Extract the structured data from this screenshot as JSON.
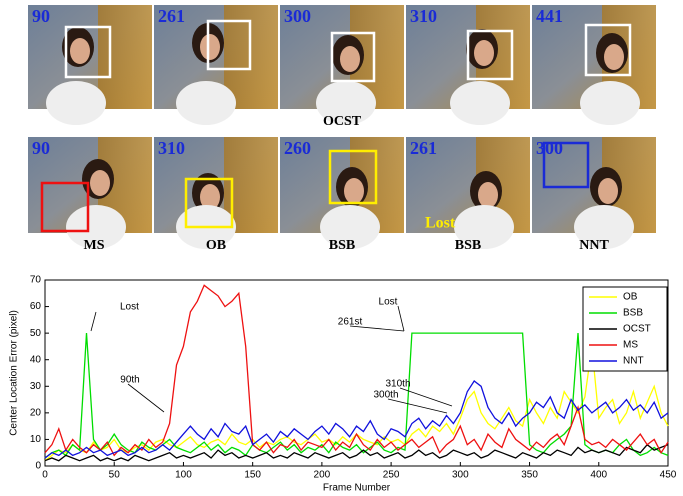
{
  "top_row": {
    "frames": [
      90,
      261,
      300,
      310,
      441
    ],
    "caption": "OCST"
  },
  "bottom_row": {
    "frames": [
      90,
      310,
      260,
      261,
      300
    ],
    "captions": [
      "MS",
      "OB",
      "BSB",
      "BSB",
      "NNT"
    ],
    "lost_label": "Lost"
  },
  "chart_data": {
    "type": "line",
    "x_label": "Frame Number",
    "y_label": "Center Location Error (pixel)",
    "xlim": [
      0,
      450
    ],
    "xticks": [
      0,
      50,
      100,
      150,
      200,
      250,
      300,
      350,
      400,
      450
    ],
    "ylim": [
      0,
      70
    ],
    "yticks": [
      0,
      10,
      20,
      30,
      40,
      50,
      60,
      70
    ],
    "legend": "upper right",
    "annotations": [
      "Lost",
      "90th",
      "Lost",
      "261st",
      "310th",
      "300th"
    ],
    "x": [
      0,
      5,
      10,
      15,
      20,
      25,
      30,
      35,
      40,
      45,
      50,
      55,
      60,
      65,
      70,
      75,
      80,
      85,
      90,
      95,
      100,
      105,
      110,
      115,
      120,
      125,
      130,
      135,
      140,
      145,
      150,
      155,
      160,
      165,
      170,
      175,
      180,
      185,
      190,
      195,
      200,
      205,
      210,
      215,
      220,
      225,
      230,
      235,
      240,
      245,
      250,
      255,
      260,
      265,
      270,
      275,
      280,
      285,
      290,
      295,
      300,
      305,
      310,
      315,
      320,
      325,
      330,
      335,
      340,
      345,
      350,
      355,
      360,
      365,
      370,
      375,
      380,
      385,
      390,
      395,
      400,
      405,
      410,
      415,
      420,
      425,
      430,
      435,
      440,
      445,
      450
    ],
    "series": [
      {
        "name": "OB",
        "color": "#ffff00",
        "values": [
          2,
          4,
          6,
          5,
          8,
          6,
          5,
          9,
          6,
          7,
          10,
          6,
          5,
          7,
          8,
          6,
          9,
          10,
          8,
          7,
          9,
          11,
          8,
          7,
          9,
          10,
          8,
          12,
          9,
          8,
          10,
          7,
          9,
          8,
          10,
          11,
          9,
          8,
          10,
          12,
          9,
          10,
          8,
          11,
          9,
          12,
          10,
          9,
          8,
          11,
          9,
          10,
          8,
          12,
          14,
          11,
          15,
          13,
          16,
          12,
          18,
          25,
          28,
          20,
          16,
          14,
          18,
          22,
          17,
          15,
          25,
          20,
          16,
          22,
          18,
          28,
          24,
          20,
          26,
          45,
          18,
          22,
          25,
          16,
          20,
          28,
          18,
          24,
          30,
          20,
          15
        ]
      },
      {
        "name": "BSB",
        "color": "#00dd00",
        "values": [
          3,
          5,
          6,
          4,
          8,
          6,
          50,
          10,
          6,
          8,
          12,
          8,
          6,
          5,
          9,
          7,
          6,
          8,
          10,
          7,
          6,
          5,
          7,
          9,
          6,
          8,
          5,
          7,
          6,
          4,
          8,
          6,
          5,
          7,
          9,
          6,
          8,
          5,
          7,
          6,
          8,
          5,
          9,
          7,
          6,
          8,
          5,
          7,
          9,
          6,
          5,
          7,
          6,
          50,
          50,
          50,
          50,
          50,
          50,
          50,
          50,
          50,
          50,
          50,
          50,
          50,
          50,
          50,
          50,
          50,
          8,
          6,
          5,
          8,
          10,
          12,
          15,
          50,
          8,
          6,
          5,
          6,
          5,
          8,
          10,
          6,
          4,
          5,
          7,
          5,
          4
        ]
      },
      {
        "name": "OCST",
        "color": "#000000",
        "values": [
          2,
          3,
          2,
          4,
          3,
          2,
          3,
          4,
          2,
          3,
          2,
          3,
          2,
          4,
          3,
          2,
          3,
          4,
          5,
          3,
          4,
          3,
          4,
          5,
          3,
          6,
          4,
          5,
          3,
          4,
          3,
          4,
          5,
          3,
          4,
          3,
          5,
          4,
          3,
          5,
          4,
          3,
          4,
          5,
          3,
          4,
          6,
          4,
          5,
          3,
          4,
          5,
          3,
          4,
          6,
          4,
          5,
          3,
          4,
          6,
          5,
          4,
          5,
          3,
          4,
          6,
          5,
          4,
          3,
          5,
          4,
          3,
          5,
          4,
          6,
          5,
          4,
          7,
          5,
          6,
          5,
          6,
          5,
          4,
          7,
          6,
          5,
          8,
          6,
          7,
          8
        ]
      },
      {
        "name": "MS",
        "color": "#ee1111",
        "values": [
          5,
          8,
          14,
          6,
          10,
          7,
          5,
          8,
          6,
          9,
          4,
          7,
          5,
          8,
          6,
          10,
          7,
          9,
          16,
          38,
          45,
          58,
          62,
          68,
          66,
          64,
          60,
          62,
          65,
          45,
          8,
          6,
          9,
          5,
          8,
          7,
          10,
          6,
          9,
          8,
          7,
          10,
          6,
          9,
          7,
          12,
          8,
          6,
          10,
          7,
          9,
          6,
          8,
          10,
          7,
          9,
          11,
          5,
          8,
          10,
          15,
          8,
          10,
          6,
          12,
          9,
          7,
          14,
          10,
          8,
          6,
          9,
          7,
          10,
          12,
          8,
          15,
          22,
          10,
          8,
          9,
          7,
          10,
          8,
          6,
          9,
          12,
          8,
          10,
          5,
          9
        ]
      },
      {
        "name": "NNT",
        "color": "#1111dd",
        "values": [
          3,
          5,
          4,
          6,
          4,
          5,
          7,
          5,
          6,
          4,
          5,
          6,
          4,
          5,
          7,
          5,
          6,
          8,
          6,
          9,
          12,
          15,
          12,
          10,
          14,
          11,
          16,
          13,
          12,
          15,
          8,
          10,
          12,
          9,
          13,
          11,
          14,
          12,
          10,
          13,
          15,
          12,
          16,
          14,
          11,
          15,
          13,
          17,
          12,
          10,
          14,
          13,
          11,
          16,
          18,
          14,
          17,
          15,
          19,
          16,
          20,
          28,
          32,
          30,
          22,
          18,
          16,
          20,
          15,
          18,
          20,
          24,
          22,
          26,
          20,
          18,
          25,
          21,
          23,
          20,
          22,
          24,
          20,
          22,
          25,
          21,
          23,
          20,
          24,
          18,
          20
        ]
      }
    ]
  }
}
